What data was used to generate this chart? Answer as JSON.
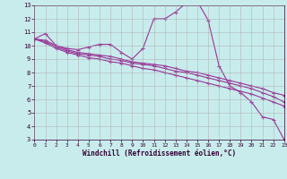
{
  "xlabel": "Windchill (Refroidissement éolien,°C)",
  "background_color": "#c8ecec",
  "grid_color": "#aaaaaa",
  "line_color": "#993399",
  "xlim": [
    0,
    23
  ],
  "ylim": [
    3,
    13
  ],
  "yticks": [
    3,
    4,
    5,
    6,
    7,
    8,
    9,
    10,
    11,
    12,
    13
  ],
  "xticks": [
    0,
    1,
    2,
    3,
    4,
    5,
    6,
    7,
    8,
    9,
    10,
    11,
    12,
    13,
    14,
    15,
    16,
    17,
    18,
    19,
    20,
    21,
    22,
    23
  ],
  "series": [
    {
      "x": [
        0,
        1,
        2,
        3,
        4,
        5,
        6,
        7,
        8,
        9,
        10,
        11,
        12,
        13,
        14,
        15,
        16,
        17,
        18,
        19,
        20,
        21,
        22,
        23
      ],
      "y": [
        10.5,
        10.9,
        10.0,
        9.8,
        9.7,
        9.9,
        10.1,
        10.1,
        9.5,
        9.0,
        9.8,
        12.0,
        12.0,
        12.5,
        13.2,
        13.3,
        11.9,
        8.5,
        7.0,
        6.5,
        5.8,
        4.7,
        4.5,
        3.0
      ]
    },
    {
      "x": [
        0,
        1,
        2,
        3,
        4,
        5,
        6,
        7,
        8,
        9,
        10,
        11,
        12,
        13,
        14,
        15,
        16,
        17,
        18,
        19,
        20,
        21,
        22,
        23
      ],
      "y": [
        10.5,
        10.4,
        10.0,
        9.7,
        9.5,
        9.4,
        9.3,
        9.2,
        9.0,
        8.8,
        8.7,
        8.6,
        8.5,
        8.3,
        8.1,
        8.0,
        7.8,
        7.6,
        7.4,
        7.2,
        7.0,
        6.8,
        6.5,
        6.3
      ]
    },
    {
      "x": [
        0,
        1,
        2,
        3,
        4,
        5,
        6,
        7,
        8,
        9,
        10,
        11,
        12,
        13,
        14,
        15,
        16,
        17,
        18,
        19,
        20,
        21,
        22,
        23
      ],
      "y": [
        10.5,
        10.3,
        9.9,
        9.6,
        9.4,
        9.3,
        9.2,
        9.0,
        8.9,
        8.7,
        8.6,
        8.5,
        8.3,
        8.1,
        8.0,
        7.8,
        7.6,
        7.4,
        7.2,
        7.0,
        6.8,
        6.5,
        6.2,
        5.8
      ]
    },
    {
      "x": [
        0,
        1,
        2,
        3,
        4,
        5,
        6,
        7,
        8,
        9,
        10,
        11,
        12,
        13,
        14,
        15,
        16,
        17,
        18,
        19,
        20,
        21,
        22,
        23
      ],
      "y": [
        10.5,
        10.2,
        9.8,
        9.5,
        9.3,
        9.1,
        9.0,
        8.8,
        8.7,
        8.5,
        8.3,
        8.2,
        8.0,
        7.8,
        7.6,
        7.4,
        7.2,
        7.0,
        6.8,
        6.6,
        6.4,
        6.1,
        5.8,
        5.5
      ]
    }
  ]
}
